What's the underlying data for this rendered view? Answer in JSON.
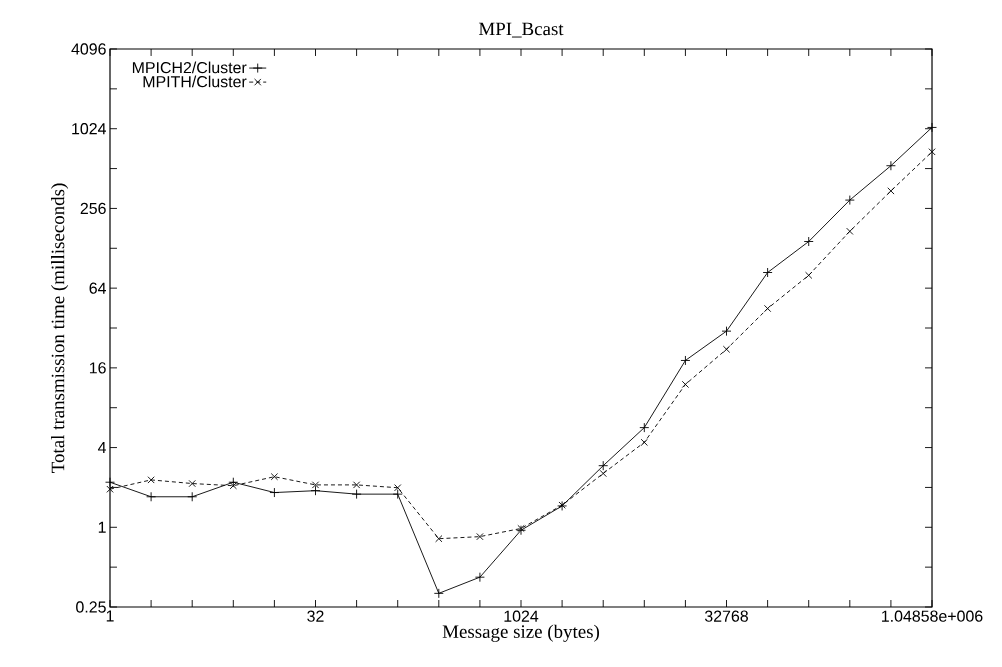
{
  "chart_data": {
    "type": "line",
    "title": "MPI_Bcast",
    "xlabel": "Message size (bytes)",
    "ylabel": "Total transmission time (milliseconds)",
    "x": [
      1,
      2,
      4,
      8,
      16,
      32,
      64,
      128,
      256,
      512,
      1024,
      2048,
      4096,
      8192,
      16384,
      32768,
      65536,
      131072,
      262144,
      524288,
      1048576
    ],
    "series": [
      {
        "name": "MPICH2/Cluster",
        "color": "#000000",
        "marker": "plus",
        "line_style": "solid",
        "values": [
          2.19,
          1.7,
          1.7,
          2.19,
          1.83,
          1.89,
          1.78,
          1.78,
          0.317,
          0.42,
          0.95,
          1.45,
          2.92,
          5.66,
          18.2,
          30.3,
          84,
          144,
          296,
          538,
          1047
        ]
      },
      {
        "name": "MPITH/Cluster",
        "color": "#000000",
        "marker": "cross",
        "line_style": "dashed",
        "values": [
          1.94,
          2.28,
          2.14,
          2.06,
          2.41,
          2.09,
          2.09,
          1.99,
          0.82,
          0.85,
          0.98,
          1.47,
          2.55,
          4.38,
          12.0,
          22.1,
          44.9,
          80,
          172,
          347,
          685
        ]
      }
    ],
    "log": "xy",
    "xlim": [
      1,
      1048576
    ],
    "ylim": [
      0.25,
      4096
    ],
    "xticks": [
      1,
      {
        "value": 2,
        "label": null
      },
      {
        "value": 4,
        "label": null
      },
      {
        "value": 8,
        "label": null
      },
      {
        "value": 16,
        "label": null
      },
      32,
      {
        "value": 64,
        "label": null
      },
      {
        "value": 128,
        "label": null
      },
      {
        "value": 256,
        "label": null
      },
      {
        "value": 512,
        "label": null
      },
      1024,
      {
        "value": 2048,
        "label": null
      },
      {
        "value": 4096,
        "label": null
      },
      {
        "value": 8192,
        "label": null
      },
      {
        "value": 16384,
        "label": null
      },
      32768,
      {
        "value": 65536,
        "label": null
      },
      {
        "value": 131072,
        "label": null
      },
      {
        "value": 262144,
        "label": null
      },
      {
        "value": 524288,
        "label": null
      },
      {
        "value": 1048576,
        "label": "1.04858e+006"
      }
    ],
    "yticks": [
      0.25,
      {
        "value": 0.5,
        "label": null
      },
      1,
      {
        "value": 2,
        "label": null
      },
      4,
      {
        "value": 8,
        "label": null
      },
      16,
      {
        "value": 32,
        "label": null
      },
      64,
      {
        "value": 128,
        "label": null
      },
      256,
      {
        "value": 512,
        "label": null
      },
      1024,
      {
        "value": 2048,
        "label": null
      },
      4096
    ],
    "grid": false,
    "legend": "top left"
  }
}
